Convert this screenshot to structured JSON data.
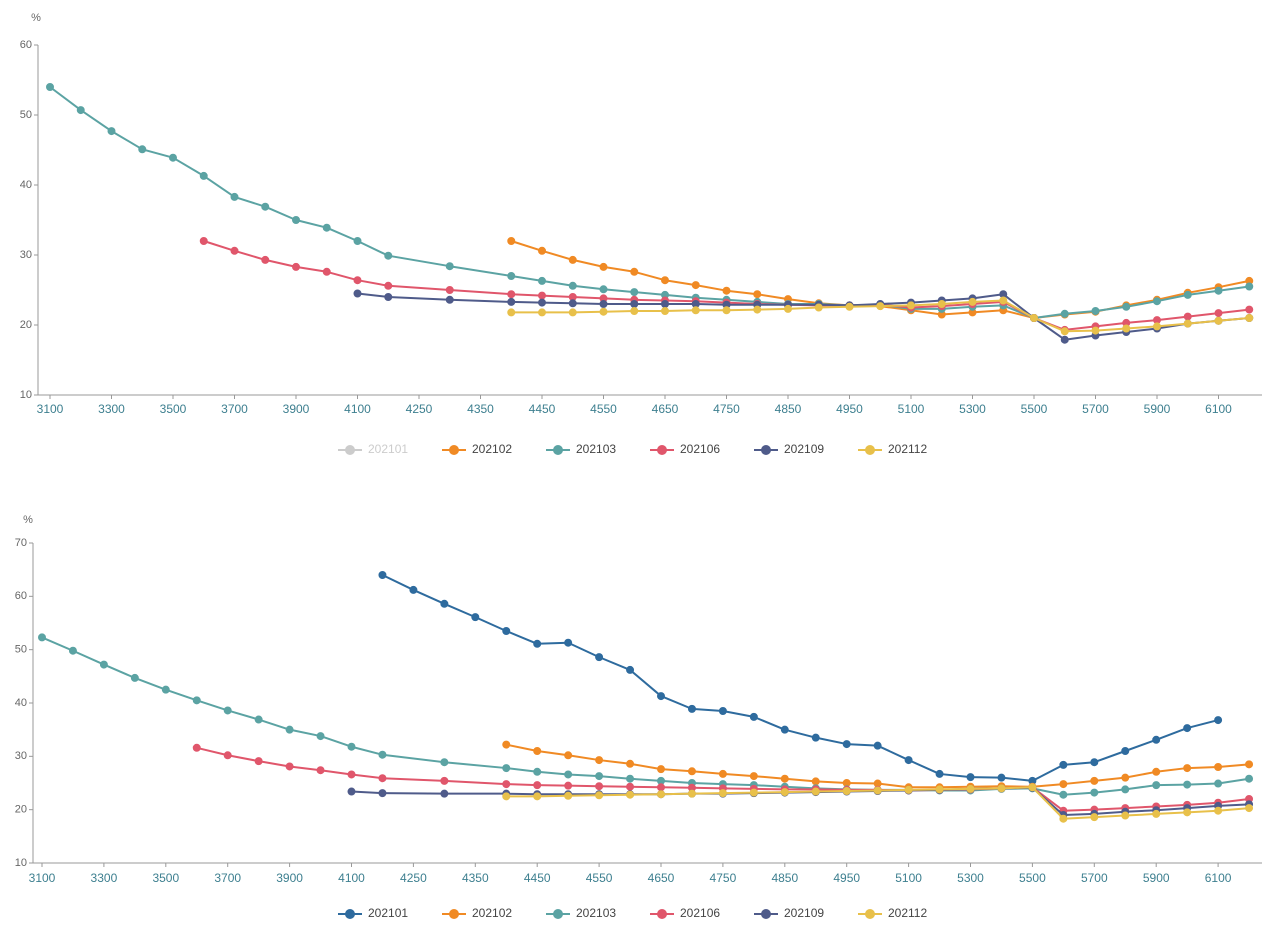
{
  "chart_data": [
    {
      "type": "line",
      "y_label": "%",
      "categories": [
        3100,
        null,
        3300,
        null,
        3500,
        null,
        3700,
        null,
        3900,
        null,
        4100,
        null,
        4250,
        null,
        4350,
        null,
        4450,
        null,
        4550,
        null,
        4650,
        null,
        4750,
        null,
        4850,
        null,
        4950,
        null,
        5100,
        null,
        5300,
        null,
        5500,
        null,
        5700,
        null,
        5900,
        null,
        6100,
        null
      ],
      "ylim": [
        10,
        60
      ],
      "yticks": [
        10,
        20,
        30,
        40,
        50,
        60
      ],
      "series": [
        {
          "name": "202101",
          "color": "#cccccc",
          "hidden": true,
          "values": [
            null,
            null,
            null,
            null,
            null,
            null,
            null,
            null,
            null,
            null,
            null,
            null,
            null,
            null,
            null,
            null,
            null,
            null,
            null,
            null,
            null,
            null,
            null,
            null,
            null,
            null,
            null,
            null,
            null,
            null,
            null,
            null,
            null,
            null,
            null,
            null,
            null,
            null,
            null,
            null
          ]
        },
        {
          "name": "202102",
          "color": "#f08a24",
          "values": [
            null,
            null,
            null,
            null,
            null,
            null,
            null,
            null,
            null,
            null,
            null,
            null,
            null,
            null,
            null,
            32,
            30.6,
            29.3,
            28.3,
            27.6,
            26.4,
            25.7,
            24.9,
            24.4,
            23.7,
            23.1,
            22.8,
            22.7,
            22.1,
            21.5,
            21.8,
            22.1,
            21,
            21.5,
            21.9,
            22.8,
            23.6,
            24.6,
            25.4,
            26.3
          ]
        },
        {
          "name": "202103",
          "color": "#5ba3a3",
          "values": [
            54,
            50.7,
            47.7,
            45.1,
            43.9,
            41.3,
            38.3,
            36.9,
            35,
            33.9,
            32,
            29.9,
            null,
            28.4,
            null,
            27,
            26.3,
            25.6,
            25.1,
            24.7,
            24.3,
            23.9,
            23.6,
            23.3,
            23,
            23,
            22.8,
            22.9,
            22.3,
            22.3,
            22.6,
            22.8,
            21,
            21.6,
            22,
            22.6,
            23.4,
            24.3,
            24.9,
            25.5
          ]
        },
        {
          "name": "202106",
          "color": "#e0566b",
          "values": [
            null,
            null,
            null,
            null,
            null,
            32,
            30.6,
            29.3,
            28.3,
            27.6,
            26.4,
            25.6,
            null,
            25,
            null,
            24.4,
            24.2,
            24,
            23.8,
            23.6,
            23.5,
            23.4,
            23.2,
            23,
            22.9,
            22.8,
            22.8,
            22.9,
            22.5,
            22.7,
            23,
            23.3,
            21,
            19.3,
            19.8,
            20.3,
            20.7,
            21.2,
            21.7,
            22.2
          ]
        },
        {
          "name": "202109",
          "color": "#4f5b8a",
          "values": [
            null,
            null,
            null,
            null,
            null,
            null,
            null,
            null,
            null,
            null,
            24.5,
            24,
            null,
            23.6,
            null,
            23.3,
            23.2,
            23.1,
            23,
            23,
            23,
            23,
            22.9,
            22.9,
            22.9,
            22.9,
            22.8,
            23,
            23.2,
            23.5,
            23.8,
            24.4,
            21,
            17.9,
            18.5,
            19,
            19.5,
            20.2,
            20.6,
            21
          ]
        },
        {
          "name": "202112",
          "color": "#e8c04a",
          "values": [
            null,
            null,
            null,
            null,
            null,
            null,
            null,
            null,
            null,
            null,
            null,
            null,
            null,
            null,
            null,
            21.8,
            21.8,
            21.8,
            21.9,
            22,
            22,
            22.1,
            22.1,
            22.2,
            22.3,
            22.5,
            22.6,
            22.7,
            22.8,
            23,
            23.3,
            23.5,
            21,
            19.1,
            19.2,
            19.5,
            19.8,
            20.2,
            20.6,
            21
          ]
        }
      ]
    },
    {
      "type": "line",
      "y_label": "%",
      "categories": [
        3100,
        null,
        3300,
        null,
        3500,
        null,
        3700,
        null,
        3900,
        null,
        4100,
        null,
        4250,
        null,
        4350,
        null,
        4450,
        null,
        4550,
        null,
        4650,
        null,
        4750,
        null,
        4850,
        null,
        4950,
        null,
        5100,
        null,
        5300,
        null,
        5500,
        null,
        5700,
        null,
        5900,
        null,
        6100,
        null
      ],
      "ylim": [
        10,
        70
      ],
      "yticks": [
        10,
        20,
        30,
        40,
        50,
        60,
        70
      ],
      "series": [
        {
          "name": "202101",
          "color": "#2e6b9e",
          "values": [
            null,
            null,
            null,
            null,
            null,
            null,
            null,
            null,
            null,
            null,
            null,
            64,
            61.2,
            58.6,
            56.1,
            53.5,
            51.1,
            51.3,
            48.6,
            46.2,
            41.3,
            38.9,
            38.5,
            37.4,
            35,
            33.5,
            32.3,
            32,
            29.3,
            26.7,
            26.1,
            26,
            25.4,
            28.4,
            28.9,
            31,
            33.1,
            35.3,
            36.8,
            null
          ]
        },
        {
          "name": "202102",
          "color": "#f08a24",
          "values": [
            null,
            null,
            null,
            null,
            null,
            null,
            null,
            null,
            null,
            null,
            null,
            null,
            null,
            null,
            null,
            32.2,
            31,
            30.2,
            29.3,
            28.6,
            27.6,
            27.2,
            26.7,
            26.3,
            25.8,
            25.3,
            25,
            24.9,
            24.2,
            24.2,
            24.3,
            24.4,
            24.3,
            24.8,
            25.4,
            26,
            27.1,
            27.8,
            28,
            28.5
          ]
        },
        {
          "name": "202103",
          "color": "#5ba3a3",
          "values": [
            52.3,
            49.8,
            47.2,
            44.7,
            42.5,
            40.5,
            38.6,
            36.9,
            35,
            33.8,
            31.8,
            30.3,
            null,
            28.9,
            null,
            27.8,
            27.1,
            26.6,
            26.3,
            25.8,
            25.4,
            25,
            24.8,
            24.6,
            24.3,
            24,
            23.8,
            23.7,
            23.7,
            23.6,
            23.6,
            23.9,
            24,
            22.8,
            23.2,
            23.8,
            24.6,
            24.7,
            24.9,
            25.8
          ]
        },
        {
          "name": "202106",
          "color": "#e0566b",
          "values": [
            null,
            null,
            null,
            null,
            null,
            31.6,
            30.2,
            29.1,
            28.1,
            27.4,
            26.6,
            25.9,
            null,
            25.4,
            null,
            24.8,
            24.6,
            24.5,
            24.4,
            24.3,
            24.2,
            24.1,
            24,
            23.9,
            23.8,
            23.8,
            23.7,
            23.7,
            23.6,
            23.7,
            23.8,
            24,
            24.2,
            19.8,
            20,
            20.3,
            20.6,
            20.9,
            21.3,
            22
          ]
        },
        {
          "name": "202109",
          "color": "#4f5b8a",
          "values": [
            null,
            null,
            null,
            null,
            null,
            null,
            null,
            null,
            null,
            null,
            23.4,
            23.1,
            null,
            23,
            null,
            23,
            22.9,
            22.9,
            22.9,
            22.9,
            22.9,
            23,
            23,
            23.1,
            23.2,
            23.3,
            23.4,
            23.5,
            23.6,
            23.7,
            23.9,
            24,
            24.1,
            19,
            19.2,
            19.6,
            19.9,
            20.3,
            20.7,
            21
          ]
        },
        {
          "name": "202112",
          "color": "#e8c04a",
          "values": [
            null,
            null,
            null,
            null,
            null,
            null,
            null,
            null,
            null,
            null,
            null,
            null,
            null,
            null,
            null,
            22.5,
            22.5,
            22.6,
            22.7,
            22.8,
            22.9,
            23,
            23.1,
            23.2,
            23.3,
            23.4,
            23.5,
            23.6,
            23.7,
            23.8,
            23.9,
            24,
            24.2,
            18.3,
            18.6,
            18.9,
            19.2,
            19.5,
            19.8,
            20.3
          ]
        }
      ]
    }
  ]
}
